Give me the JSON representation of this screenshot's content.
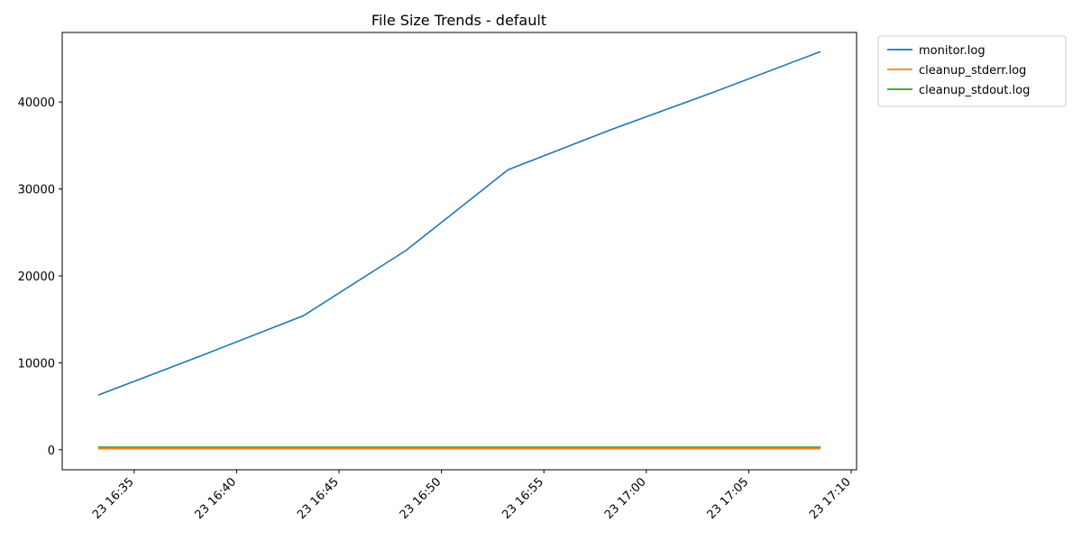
{
  "chart_data": {
    "type": "line",
    "title": "File Size Trends - default",
    "xlabel": "",
    "ylabel": "",
    "x": [
      "23 16:33:15",
      "23 16:38:15",
      "23 16:43:15",
      "23 16:48:15",
      "23 16:53:15",
      "23 16:58:15",
      "23 17:03:15",
      "23 17:08:30"
    ],
    "x_ticks": [
      "23 16:35",
      "23 16:40",
      "23 16:45",
      "23 16:50",
      "23 16:55",
      "23 17:00",
      "23 17:05",
      "23 17:10"
    ],
    "y_ticks": [
      0,
      10000,
      20000,
      30000,
      40000
    ],
    "ylim": [
      -2300,
      48000
    ],
    "grid": false,
    "legend_position": "outside-top-right",
    "series": [
      {
        "name": "monitor.log",
        "color": "#1f77b4",
        "values": [
          6300,
          10800,
          15400,
          22900,
          32200,
          36800,
          41100,
          45800
        ]
      },
      {
        "name": "cleanup_stderr.log",
        "color": "#ff7f0e",
        "values": [
          120,
          120,
          120,
          120,
          120,
          120,
          120,
          120
        ]
      },
      {
        "name": "cleanup_stdout.log",
        "color": "#2ca02c",
        "values": [
          300,
          300,
          300,
          300,
          300,
          300,
          300,
          300
        ]
      }
    ]
  }
}
